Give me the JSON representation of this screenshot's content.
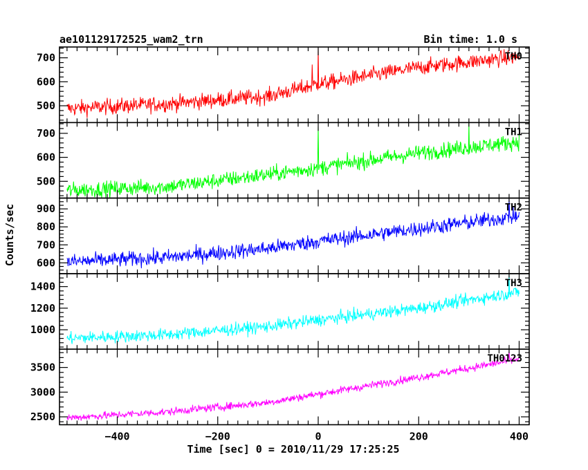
{
  "header": {
    "title": "ae101129172525_wam2_trn",
    "bin_time": "Bin time: 1.0 s"
  },
  "chart_data": {
    "type": "line",
    "xlabel": "Time [sec] 0 = 2010/11/29 17:25:25",
    "ylabel": "Counts/sec",
    "xlim": [
      -515,
      420
    ],
    "x_range": [
      -500,
      400
    ],
    "x_step": 1,
    "xticks": [
      -400,
      -200,
      0,
      200,
      400
    ],
    "xtick_labels": [
      "−400",
      "−200",
      "0",
      "200",
      "400"
    ],
    "grid": false,
    "panels": [
      {
        "name": "TH0",
        "color": "#ff0000",
        "ylim": [
          430,
          745
        ],
        "yticks": [
          500,
          600,
          700
        ],
        "trend": [
          [
            -500,
            488
          ],
          [
            -300,
            508
          ],
          [
            -100,
            540
          ],
          [
            0,
            590
          ],
          [
            200,
            660
          ],
          [
            400,
            705
          ]
        ],
        "noise": 23,
        "spikes": [
          [
            0,
            755
          ],
          [
            -12,
            672
          ]
        ]
      },
      {
        "name": "TH1",
        "color": "#00ff00",
        "ylim": [
          430,
          745
        ],
        "yticks": [
          500,
          600,
          700
        ],
        "trend": [
          [
            -500,
            462
          ],
          [
            -300,
            478
          ],
          [
            -100,
            528
          ],
          [
            0,
            556
          ],
          [
            200,
            618
          ],
          [
            400,
            665
          ]
        ],
        "noise": 23,
        "spikes": [
          [
            0,
            730
          ],
          [
            300,
            745
          ]
        ]
      },
      {
        "name": "TH2",
        "color": "#0000ff",
        "ylim": [
          540,
          960
        ],
        "yticks": [
          600,
          700,
          800,
          900
        ],
        "trend": [
          [
            -500,
            605
          ],
          [
            -300,
            630
          ],
          [
            -100,
            680
          ],
          [
            0,
            720
          ],
          [
            200,
            790
          ],
          [
            400,
            860
          ]
        ],
        "noise": 30,
        "spikes": [
          [
            380,
            960
          ]
        ]
      },
      {
        "name": "TH3",
        "color": "#00ffff",
        "ylim": [
          820,
          1520
        ],
        "yticks": [
          1000,
          1200,
          1400
        ],
        "trend": [
          [
            -500,
            920
          ],
          [
            -300,
            955
          ],
          [
            -100,
            1030
          ],
          [
            0,
            1090
          ],
          [
            200,
            1200
          ],
          [
            400,
            1350
          ]
        ],
        "noise": 40,
        "spikes": [
          [
            380,
            1520
          ]
        ]
      },
      {
        "name": "TH0123",
        "color": "#ff00ff",
        "ylim": [
          2340,
          3870
        ],
        "yticks": [
          2500,
          3000,
          3500
        ],
        "trend": [
          [
            -500,
            2480
          ],
          [
            -300,
            2600
          ],
          [
            -100,
            2790
          ],
          [
            0,
            2960
          ],
          [
            200,
            3300
          ],
          [
            400,
            3670
          ]
        ],
        "noise": 55,
        "spikes": [
          [
            380,
            3850
          ]
        ]
      }
    ]
  }
}
